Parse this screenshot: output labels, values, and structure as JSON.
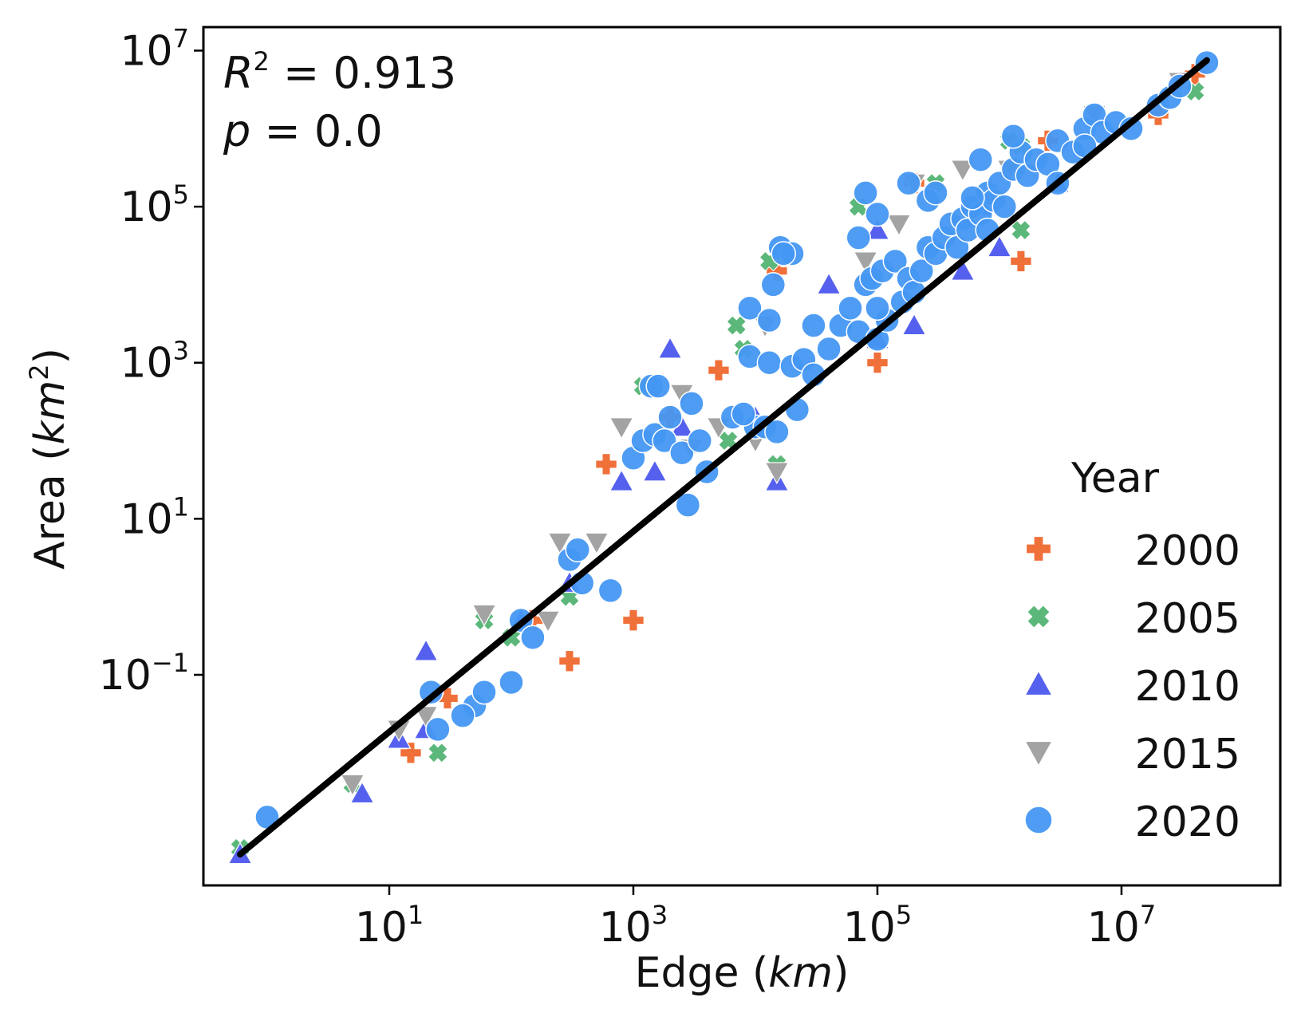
{
  "chart_data": {
    "type": "scatter",
    "xscale": "log",
    "yscale": "log",
    "xlabel_main": "Edge (",
    "xlabel_unit": "km",
    "xlabel_end": ")",
    "ylabel_main": "Area (",
    "ylabel_unit": "km",
    "ylabel_sup": "2",
    "ylabel_end": ")",
    "xlim": [
      0.3,
      200000000.0
    ],
    "ylim": [
      0.0002,
      20000000.0
    ],
    "xticks": [
      {
        "base": "10",
        "exp": "1",
        "value": 10
      },
      {
        "base": "10",
        "exp": "3",
        "value": 1000
      },
      {
        "base": "10",
        "exp": "5",
        "value": 100000
      },
      {
        "base": "10",
        "exp": "7",
        "value": 10000000
      }
    ],
    "yticks": [
      {
        "base": "10",
        "exp": "−1",
        "value": 0.1
      },
      {
        "base": "10",
        "exp": "1",
        "value": 10
      },
      {
        "base": "10",
        "exp": "3",
        "value": 1000
      },
      {
        "base": "10",
        "exp": "5",
        "value": 100000
      },
      {
        "base": "10",
        "exp": "7",
        "value": 10000000
      }
    ],
    "annotations": {
      "r2_label": "R",
      "r2_sup": "2",
      "r2_value": " = 0.913",
      "p_label": "p",
      "p_value": " = 0.0"
    },
    "fit_line": {
      "x": [
        0.6,
        50000000.0
      ],
      "y": [
        0.0005,
        7500000.0
      ],
      "color": "#000000"
    },
    "legend": {
      "title": "Year",
      "placement": "lower-right",
      "entries": [
        {
          "label": "2000",
          "marker": "plus",
          "color": "#f0703a"
        },
        {
          "label": "2005",
          "marker": "x",
          "color": "#5cb87a"
        },
        {
          "label": "2010",
          "marker": "triangle-up",
          "color": "#5561ee"
        },
        {
          "label": "2015",
          "marker": "triangle-down",
          "color": "#a3a3a3"
        },
        {
          "label": "2020",
          "marker": "circle",
          "color": "#4497f3"
        }
      ]
    },
    "series": [
      {
        "name": "2000",
        "marker": "plus",
        "color": "#f0703a",
        "points": [
          [
            2000,
            200
          ],
          [
            15000,
            15000
          ],
          [
            200000,
            200000
          ],
          [
            1500000,
            20000
          ],
          [
            20000000,
            1500000
          ],
          [
            40000000,
            5000000
          ],
          [
            2500000,
            700000
          ],
          [
            300,
            0.15
          ],
          [
            30,
            0.05
          ],
          [
            600,
            50
          ],
          [
            5000,
            800
          ],
          [
            15,
            0.01
          ],
          [
            100000,
            1000
          ],
          [
            150,
            0.5
          ],
          [
            1000,
            0.5
          ]
        ]
      },
      {
        "name": "2005",
        "marker": "x",
        "color": "#5cb87a",
        "points": [
          [
            0.6,
            0.0006
          ],
          [
            5,
            0.004
          ],
          [
            25,
            0.01
          ],
          [
            60,
            0.5
          ],
          [
            300,
            1
          ],
          [
            1200,
            500
          ],
          [
            6000,
            100
          ],
          [
            8000,
            1500
          ],
          [
            13000,
            20000
          ],
          [
            70000,
            100000
          ],
          [
            300000,
            200000
          ],
          [
            1500000,
            600000
          ],
          [
            40000000,
            3000000
          ],
          [
            1500000,
            50000
          ],
          [
            7000,
            3000
          ],
          [
            1200000,
            700000
          ],
          [
            100,
            0.3
          ],
          [
            15000,
            50
          ]
        ]
      },
      {
        "name": "2010",
        "marker": "triangle-up",
        "color": "#5561ee",
        "points": [
          [
            0.6,
            0.0005
          ],
          [
            6,
            0.003
          ],
          [
            20,
            0.02
          ],
          [
            12,
            0.015
          ],
          [
            120,
            0.5
          ],
          [
            300,
            1.5
          ],
          [
            800,
            30
          ],
          [
            1500,
            40
          ],
          [
            2500,
            150
          ],
          [
            10000,
            200
          ],
          [
            15000,
            30
          ],
          [
            40000,
            10000
          ],
          [
            100000,
            50000
          ],
          [
            200000,
            3000
          ],
          [
            500000,
            15000
          ],
          [
            1000000,
            30000
          ],
          [
            3000000,
            200000
          ],
          [
            2000,
            1500
          ],
          [
            100000,
            2000
          ],
          [
            700000,
            100000
          ],
          [
            20,
            0.2
          ]
        ]
      },
      {
        "name": "2015",
        "marker": "triangle-down",
        "color": "#a3a3a3",
        "points": [
          [
            5,
            0.004
          ],
          [
            12,
            0.02
          ],
          [
            20,
            0.03
          ],
          [
            60,
            0.6
          ],
          [
            200,
            0.5
          ],
          [
            250,
            5
          ],
          [
            500,
            5
          ],
          [
            800,
            150
          ],
          [
            2500,
            400
          ],
          [
            5000,
            150
          ],
          [
            10000,
            100
          ],
          [
            15000,
            40
          ],
          [
            150000,
            60000
          ],
          [
            200000,
            200000
          ],
          [
            3000,
            80
          ],
          [
            500000,
            300000
          ],
          [
            1200000,
            300000
          ],
          [
            6000000,
            1500000
          ],
          [
            80000,
            20000
          ],
          [
            12000,
            3000
          ],
          [
            30000000,
            4000000
          ]
        ]
      }
    ],
    "series_2020": {
      "name": "2020",
      "marker": "circle",
      "color": "#4497f3",
      "points": [
        [
          1,
          0.0015
        ],
        [
          25,
          0.02
        ],
        [
          22,
          0.06
        ],
        [
          50,
          0.04
        ],
        [
          60,
          0.06
        ],
        [
          40,
          0.03
        ],
        [
          100,
          0.08
        ],
        [
          120,
          0.5
        ],
        [
          150,
          0.3
        ],
        [
          300,
          3
        ],
        [
          380,
          1.5
        ],
        [
          650,
          1.2
        ],
        [
          350,
          4
        ],
        [
          1000,
          60
        ],
        [
          1200,
          100
        ],
        [
          1400,
          500
        ],
        [
          1500,
          120
        ],
        [
          2000,
          200
        ],
        [
          1800,
          100
        ],
        [
          2500,
          70
        ],
        [
          2800,
          15
        ],
        [
          3500,
          100
        ],
        [
          3000,
          300
        ],
        [
          6500,
          200
        ],
        [
          10000,
          150
        ],
        [
          12000,
          150
        ],
        [
          9000,
          1200
        ],
        [
          13000,
          1000
        ],
        [
          15000,
          130
        ],
        [
          22000,
          250
        ],
        [
          20000,
          900
        ],
        [
          25000,
          1100
        ],
        [
          30000,
          700
        ],
        [
          40000,
          1500
        ],
        [
          50000,
          3000
        ],
        [
          60000,
          5000
        ],
        [
          70000,
          2500
        ],
        [
          80000,
          10000
        ],
        [
          90000,
          12000
        ],
        [
          100000,
          2000
        ],
        [
          110000,
          15000
        ],
        [
          120000,
          3500
        ],
        [
          140000,
          20000
        ],
        [
          160000,
          6000
        ],
        [
          180000,
          12000
        ],
        [
          200000,
          8000
        ],
        [
          230000,
          15000
        ],
        [
          260000,
          30000
        ],
        [
          300000,
          25000
        ],
        [
          350000,
          40000
        ],
        [
          400000,
          60000
        ],
        [
          450000,
          30000
        ],
        [
          500000,
          70000
        ],
        [
          550000,
          50000
        ],
        [
          600000,
          100000
        ],
        [
          700000,
          80000
        ],
        [
          800000,
          150000
        ],
        [
          900000,
          120000
        ],
        [
          1000000,
          200000
        ],
        [
          1100000,
          100000
        ],
        [
          1300000,
          300000
        ],
        [
          1500000,
          500000
        ],
        [
          1700000,
          250000
        ],
        [
          2000000,
          400000
        ],
        [
          2500000,
          350000
        ],
        [
          3000000,
          700000
        ],
        [
          4000000,
          500000
        ],
        [
          5000000,
          1000000
        ],
        [
          6000000,
          1500000
        ],
        [
          7000000,
          900000
        ],
        [
          9000000,
          1200000
        ],
        [
          12000000,
          1000000
        ],
        [
          20000000,
          2000000
        ],
        [
          25000000,
          2500000
        ],
        [
          30000000,
          3500000
        ],
        [
          50000000,
          7000000
        ],
        [
          80000,
          150000
        ],
        [
          180000,
          200000
        ],
        [
          260000,
          120000
        ],
        [
          16000,
          30000
        ],
        [
          20000,
          25000
        ],
        [
          17000,
          25000
        ],
        [
          14000,
          10000
        ],
        [
          9000,
          5000
        ],
        [
          13000,
          3500
        ],
        [
          70000,
          40000
        ],
        [
          100000,
          5000
        ],
        [
          100000,
          80000
        ],
        [
          30000,
          3000
        ],
        [
          4000,
          40
        ],
        [
          1600,
          500
        ],
        [
          8000,
          220
        ],
        [
          1300000,
          800000
        ],
        [
          700000,
          400000
        ],
        [
          600000,
          130000
        ],
        [
          800000,
          50000
        ],
        [
          300000,
          150000
        ],
        [
          3000000,
          200000
        ],
        [
          5000000,
          600000
        ]
      ]
    }
  }
}
